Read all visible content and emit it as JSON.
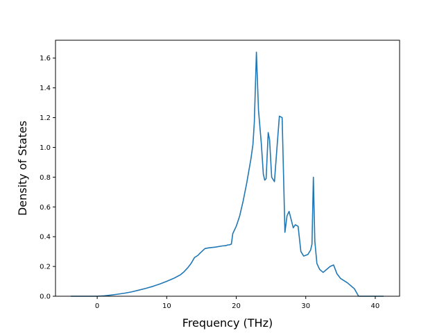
{
  "chart_data": {
    "type": "line",
    "title": "",
    "xlabel": "Frequency (THz)",
    "ylabel": "Density of States",
    "xlim": [
      -6.0,
      43.5
    ],
    "ylim": [
      0.0,
      1.72
    ],
    "xticks": [
      0,
      10,
      20,
      30,
      40
    ],
    "yticks": [
      0.0,
      0.2,
      0.4,
      0.6,
      0.8,
      1.0,
      1.2,
      1.4,
      1.6
    ],
    "xtick_labels": [
      "0",
      "10",
      "20",
      "30",
      "40"
    ],
    "ytick_labels": [
      "0.0",
      "0.2",
      "0.4",
      "0.6",
      "0.8",
      "1.0",
      "1.2",
      "1.4",
      "1.6"
    ],
    "grid": false,
    "legend": false,
    "series": [
      {
        "color": "#1f77b4",
        "x": [
          -3.8,
          -2,
          0,
          1,
          2,
          3,
          4,
          5,
          6,
          7,
          8,
          9,
          10,
          11,
          12,
          12.5,
          13,
          13.5,
          14,
          14.5,
          14.8,
          15.5,
          16,
          17,
          18,
          18.5,
          18.8,
          19,
          19.3,
          19.5,
          20,
          20.5,
          20.8,
          21,
          21.5,
          21.8,
          22.1,
          22.4,
          22.6,
          22.9,
          23.2,
          23.6,
          23.9,
          24.1,
          24.3,
          24.6,
          24.8,
          25.1,
          25.5,
          25.9,
          26.2,
          26.6,
          27,
          27.3,
          27.6,
          28.2,
          28.5,
          28.9,
          29.3,
          29.7,
          30.3,
          30.7,
          30.9,
          31.1,
          31.3,
          31.6,
          32,
          32.5,
          33,
          33.5,
          34,
          34.5,
          35,
          36,
          37,
          37.6,
          38.5,
          41.2
        ],
        "y": [
          0.0,
          0.0,
          0.0,
          0.003,
          0.008,
          0.014,
          0.021,
          0.03,
          0.041,
          0.053,
          0.066,
          0.082,
          0.1,
          0.12,
          0.145,
          0.165,
          0.19,
          0.22,
          0.26,
          0.275,
          0.29,
          0.32,
          0.325,
          0.33,
          0.338,
          0.34,
          0.345,
          0.345,
          0.35,
          0.42,
          0.47,
          0.54,
          0.6,
          0.64,
          0.76,
          0.84,
          0.92,
          1.02,
          1.17,
          1.64,
          1.25,
          1.03,
          0.82,
          0.78,
          0.79,
          1.1,
          1.05,
          0.8,
          0.77,
          1.02,
          1.21,
          1.2,
          0.43,
          0.54,
          0.57,
          0.46,
          0.48,
          0.47,
          0.3,
          0.27,
          0.28,
          0.31,
          0.35,
          0.8,
          0.37,
          0.22,
          0.18,
          0.16,
          0.18,
          0.2,
          0.21,
          0.15,
          0.12,
          0.09,
          0.05,
          0.0,
          0.0,
          0.0
        ]
      }
    ]
  }
}
